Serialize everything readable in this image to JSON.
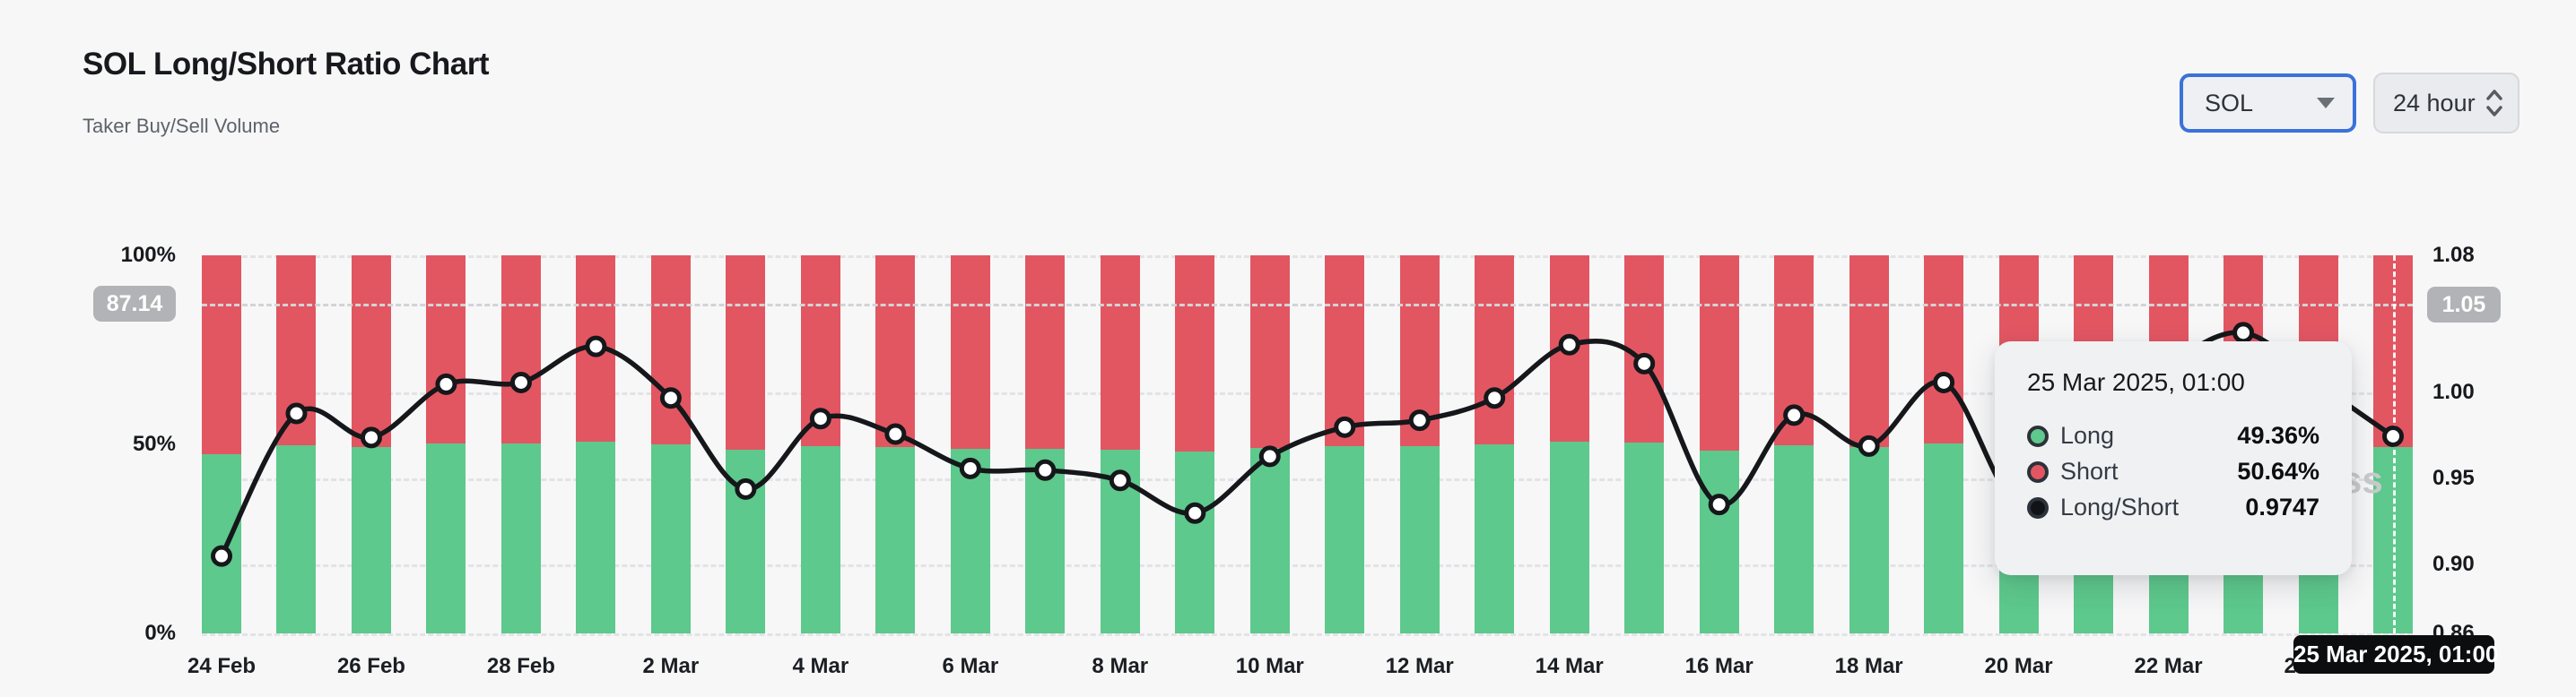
{
  "header": {
    "title": "SOL Long/Short Ratio Chart",
    "subtitle": "Taker Buy/Sell Volume"
  },
  "controls": {
    "symbol": "SOL",
    "interval": "24 hour"
  },
  "chart_data": {
    "type": "stacked-bar+line",
    "categories": [
      "24 Feb",
      "25 Feb",
      "26 Feb",
      "27 Feb",
      "28 Feb",
      "1 Mar",
      "2 Mar",
      "3 Mar",
      "4 Mar",
      "5 Mar",
      "6 Mar",
      "7 Mar",
      "8 Mar",
      "9 Mar",
      "10 Mar",
      "11 Mar",
      "12 Mar",
      "13 Mar",
      "14 Mar",
      "15 Mar",
      "16 Mar",
      "17 Mar",
      "18 Mar",
      "19 Mar",
      "20 Mar",
      "21 Mar",
      "22 Mar",
      "23 Mar",
      "24 Mar",
      "25 Mar"
    ],
    "x_tick_labels": [
      "24 Feb",
      "26 Feb",
      "28 Feb",
      "2 Mar",
      "4 Mar",
      "6 Mar",
      "8 Mar",
      "10 Mar",
      "12 Mar",
      "14 Mar",
      "16 Mar",
      "18 Mar",
      "20 Mar",
      "22 Mar",
      "24 Mar"
    ],
    "series": [
      {
        "name": "Long",
        "unit": "%",
        "color": "#5dc98c",
        "values": [
          47.51,
          49.7,
          49.34,
          50.12,
          50.15,
          50.67,
          49.92,
          48.56,
          49.62,
          49.39,
          48.88,
          48.85,
          48.69,
          48.19,
          49.06,
          49.49,
          49.6,
          49.92,
          50.69,
          50.42,
          48.32,
          49.67,
          49.21,
          50.15,
          48.32,
          49.24,
          50.37,
          50.86,
          50.12,
          49.36
        ]
      },
      {
        "name": "Short",
        "unit": "%",
        "color": "#e25662",
        "values": [
          52.49,
          50.3,
          50.66,
          49.88,
          49.85,
          49.33,
          50.08,
          51.44,
          50.38,
          50.61,
          51.12,
          51.15,
          51.31,
          51.81,
          50.94,
          50.51,
          50.4,
          50.08,
          49.31,
          49.58,
          51.68,
          50.33,
          50.79,
          49.85,
          51.68,
          50.76,
          49.63,
          49.14,
          49.88,
          50.64
        ]
      },
      {
        "name": "Long/Short",
        "axis": "right",
        "color": "#15171a",
        "values": [
          0.905,
          0.988,
          0.974,
          1.005,
          1.006,
          1.027,
          0.997,
          0.944,
          0.985,
          0.976,
          0.956,
          0.955,
          0.949,
          0.93,
          0.963,
          0.98,
          0.984,
          0.997,
          1.028,
          1.017,
          0.935,
          0.987,
          0.969,
          1.006,
          0.935,
          0.97,
          1.015,
          1.035,
          1.005,
          0.9747
        ]
      }
    ],
    "left_axis": {
      "range": [
        0,
        100
      ],
      "tick_values": [
        100,
        50,
        0
      ],
      "tick_labels": [
        "100%",
        "50%",
        "0%"
      ]
    },
    "right_axis": {
      "range": [
        0.86,
        1.08
      ],
      "tick_values": [
        1.08,
        1.0,
        0.95,
        0.9,
        0.86
      ],
      "tick_labels": [
        "1.08",
        "1.00",
        "0.95",
        "0.90",
        "0.86"
      ]
    },
    "grid": "horizontal-dashed",
    "legend_position": "none (tooltip only)"
  },
  "crosshair": {
    "y_left_label": "87.14",
    "y_right_label": "1.05",
    "y_value_pct": 87.14,
    "x_label": "25 Mar 2025, 01:00"
  },
  "tooltip": {
    "title": "25 Mar 2025, 01:00",
    "rows": [
      {
        "label": "Long",
        "value": "49.36%",
        "dot_color": "#5dc98c"
      },
      {
        "label": "Short",
        "value": "50.64%",
        "dot_color": "#e25662"
      },
      {
        "label": "Long/Short",
        "value": "0.9747",
        "dot_color": "#111318"
      }
    ]
  },
  "watermark_visible": "ss",
  "colors": {
    "background": "#f7f7f8",
    "long": "#5dc98c",
    "short": "#e25662",
    "line": "#15171a",
    "accent_blue": "#3b72d9",
    "badge_gray": "#b2b3b6",
    "badge_black": "#0c0d0f",
    "gridline": "#e2e3e6"
  }
}
